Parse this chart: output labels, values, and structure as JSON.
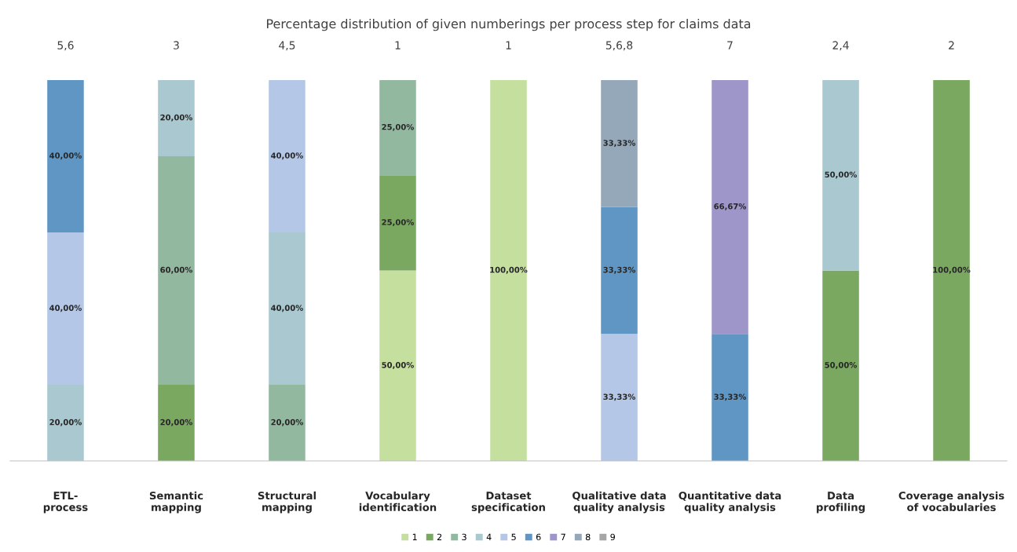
{
  "chart_data": {
    "type": "bar",
    "title": "Percentage distribution of given numberings per process step for claims data",
    "categories": [
      "ETL-\nprocess",
      "Semantic\nmapping",
      "Structural\nmapping",
      "Vocabulary\nidentification",
      "Dataset\nspecification",
      "Qualitative data\nquality analysis",
      "Quantitative data\nquality analysis",
      "Data\nprofiling",
      "Coverage analysis\nof vocabularies"
    ],
    "stacked": true,
    "legend": "bottom",
    "grid": false,
    "tick_labels": "x",
    "series": [
      {
        "name": "1",
        "color": "#c5df9f",
        "values": [
          null,
          null,
          null,
          50,
          100,
          null,
          null,
          null,
          null
        ],
        "value_labels": [
          null,
          null,
          null,
          "50,00%",
          "100,00%",
          null,
          null,
          null,
          null
        ]
      },
      {
        "name": "2",
        "color": "#7aa860",
        "values": [
          null,
          20,
          null,
          25,
          null,
          null,
          null,
          50,
          100
        ],
        "value_labels": [
          null,
          "20,00%",
          null,
          "25,00%",
          null,
          null,
          null,
          "50,00%",
          "100,00%"
        ]
      },
      {
        "name": "3",
        "color": "#93b8a0",
        "values": [
          null,
          60,
          20,
          25,
          null,
          null,
          null,
          null,
          null
        ],
        "value_labels": [
          null,
          "60,00%",
          "20,00%",
          "25,00%",
          null,
          null,
          null,
          null,
          null
        ]
      },
      {
        "name": "4",
        "color": "#a9c8cf",
        "values": [
          20,
          20,
          40,
          null,
          null,
          null,
          null,
          50,
          null
        ],
        "value_labels": [
          "20,00%",
          "20,00%",
          "40,00%",
          null,
          null,
          null,
          null,
          "50,00%",
          null
        ]
      },
      {
        "name": "5",
        "color": "#b4c7e7",
        "values": [
          40,
          null,
          40,
          null,
          null,
          33.33,
          null,
          null,
          null
        ],
        "value_labels": [
          "40,00%",
          null,
          "40,00%",
          null,
          null,
          "33,33%",
          null,
          null,
          null
        ]
      },
      {
        "name": "6",
        "color": "#6096c4",
        "values": [
          40,
          null,
          null,
          null,
          null,
          33.33,
          33.33,
          null,
          null
        ],
        "value_labels": [
          "40,00%",
          null,
          null,
          null,
          null,
          "33,33%",
          "33,33%",
          null,
          null
        ]
      },
      {
        "name": "7",
        "color": "#9e95c9",
        "values": [
          null,
          null,
          null,
          null,
          null,
          null,
          66.67,
          null,
          null
        ],
        "value_labels": [
          null,
          null,
          null,
          null,
          null,
          null,
          "66,67%",
          null,
          null
        ]
      },
      {
        "name": "8",
        "color": "#95a8ba",
        "values": [
          null,
          null,
          null,
          null,
          null,
          33.33,
          null,
          null,
          null
        ],
        "value_labels": [
          null,
          null,
          null,
          null,
          null,
          "33,33%",
          null,
          null,
          null
        ]
      },
      {
        "name": "9",
        "color": "#a6a6a6",
        "values": [
          null,
          null,
          null,
          null,
          null,
          null,
          null,
          null,
          null
        ],
        "value_labels": [
          null,
          null,
          null,
          null,
          null,
          null,
          null,
          null,
          null
        ]
      }
    ],
    "annotations": [
      "5,6",
      "3",
      "4,5",
      "1",
      "1",
      "5,6,8",
      "7",
      "2,4",
      "2"
    ]
  }
}
